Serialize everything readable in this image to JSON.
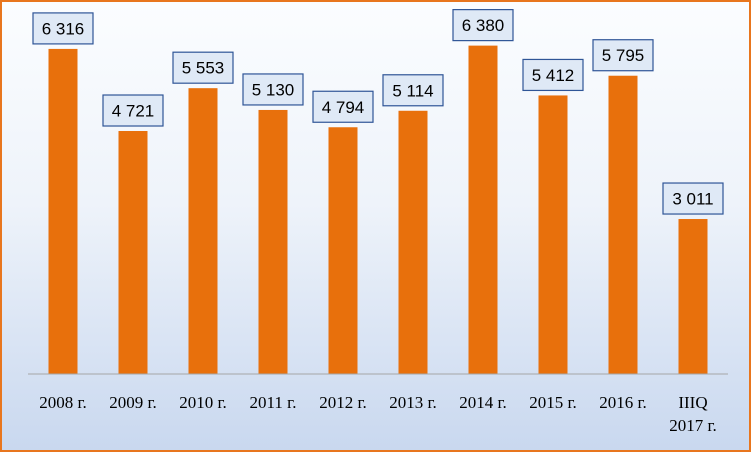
{
  "chart_data": {
    "type": "bar",
    "categories": [
      "2008 г.",
      "2009 г.",
      "2010 г.",
      "2011 г.",
      "2012 г.",
      "2013 г.",
      "2014 г.",
      "2015 г.",
      "2016 г.",
      [
        "IIIQ",
        "2017 г."
      ]
    ],
    "values": [
      6316,
      4721,
      5553,
      5130,
      4794,
      5114,
      6380,
      5412,
      5795,
      3011
    ],
    "data_labels": [
      "6 316",
      "4 721",
      "5 553",
      "5 130",
      "4 794",
      "5 114",
      "6 380",
      "5 412",
      "5 795",
      "3 011"
    ],
    "title": "",
    "xlabel": "",
    "ylabel": "",
    "ylim": [
      0,
      6800
    ],
    "grid": false,
    "legend": "none",
    "colors": {
      "bar": "#e8700c",
      "frame": "#e8761e",
      "label_box_fill": "#dfe9f6",
      "label_box_border": "#2f5597"
    }
  }
}
